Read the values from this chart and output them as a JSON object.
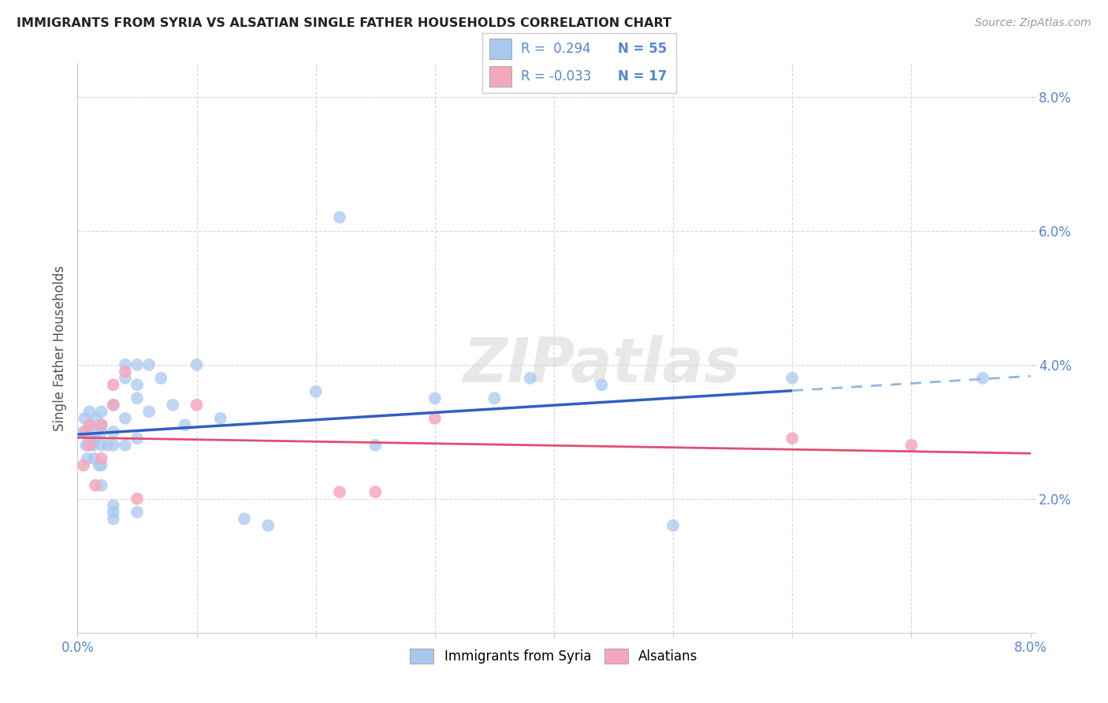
{
  "title": "IMMIGRANTS FROM SYRIA VS ALSATIAN SINGLE FATHER HOUSEHOLDS CORRELATION CHART",
  "source": "Source: ZipAtlas.com",
  "ylabel": "Single Father Households",
  "xlim": [
    0.0,
    0.08
  ],
  "ylim": [
    0.0,
    0.085
  ],
  "xticks": [
    0.0,
    0.01,
    0.02,
    0.03,
    0.04,
    0.05,
    0.06,
    0.07,
    0.08
  ],
  "yticks": [
    0.0,
    0.02,
    0.04,
    0.06,
    0.08
  ],
  "x_only_ends_labels": [
    "0.0%",
    "8.0%"
  ],
  "ytick_labels": [
    "",
    "2.0%",
    "4.0%",
    "6.0%",
    "8.0%"
  ],
  "legend_R1": "R =  0.294",
  "legend_N1": "N = 55",
  "legend_R2": "R = -0.033",
  "legend_N2": "N = 17",
  "label1": "Immigrants from Syria",
  "label2": "Alsatians",
  "color1": "#a8c8f0",
  "color2": "#f4a8be",
  "trendline1_color": "#3060c0",
  "trendline2_color": "#e05070",
  "trendline1_dashed_color": "#90b8e0",
  "background_color": "#ffffff",
  "grid_color": "#d8d8d8",
  "tick_label_color": "#5588cc",
  "syria_x": [
    0.0005,
    0.0006,
    0.0007,
    0.0008,
    0.0009,
    0.001,
    0.001,
    0.001,
    0.0012,
    0.0013,
    0.0014,
    0.0015,
    0.0016,
    0.0018,
    0.002,
    0.002,
    0.002,
    0.002,
    0.002,
    0.002,
    0.0025,
    0.003,
    0.003,
    0.003,
    0.003,
    0.003,
    0.003,
    0.004,
    0.004,
    0.004,
    0.004,
    0.005,
    0.005,
    0.005,
    0.005,
    0.005,
    0.006,
    0.006,
    0.007,
    0.008,
    0.009,
    0.01,
    0.012,
    0.014,
    0.016,
    0.02,
    0.022,
    0.025,
    0.03,
    0.035,
    0.038,
    0.044,
    0.05,
    0.06,
    0.076
  ],
  "syria_y": [
    0.03,
    0.032,
    0.028,
    0.026,
    0.028,
    0.031,
    0.029,
    0.033,
    0.03,
    0.028,
    0.026,
    0.029,
    0.032,
    0.025,
    0.03,
    0.028,
    0.031,
    0.033,
    0.025,
    0.022,
    0.028,
    0.034,
    0.028,
    0.03,
    0.019,
    0.018,
    0.017,
    0.038,
    0.04,
    0.032,
    0.028,
    0.035,
    0.037,
    0.029,
    0.04,
    0.018,
    0.04,
    0.033,
    0.038,
    0.034,
    0.031,
    0.04,
    0.032,
    0.017,
    0.016,
    0.036,
    0.062,
    0.028,
    0.035,
    0.035,
    0.038,
    0.037,
    0.016,
    0.038,
    0.038
  ],
  "alsatian_x": [
    0.0005,
    0.0007,
    0.001,
    0.001,
    0.0015,
    0.002,
    0.002,
    0.003,
    0.003,
    0.004,
    0.005,
    0.01,
    0.022,
    0.025,
    0.03,
    0.06,
    0.07
  ],
  "alsatian_y": [
    0.025,
    0.03,
    0.028,
    0.031,
    0.022,
    0.026,
    0.031,
    0.037,
    0.034,
    0.039,
    0.02,
    0.034,
    0.021,
    0.021,
    0.032,
    0.029,
    0.028
  ],
  "trendline1_solid_end": 0.06,
  "trendline1_dashed_start": 0.06,
  "trendline1_dashed_end": 0.08
}
